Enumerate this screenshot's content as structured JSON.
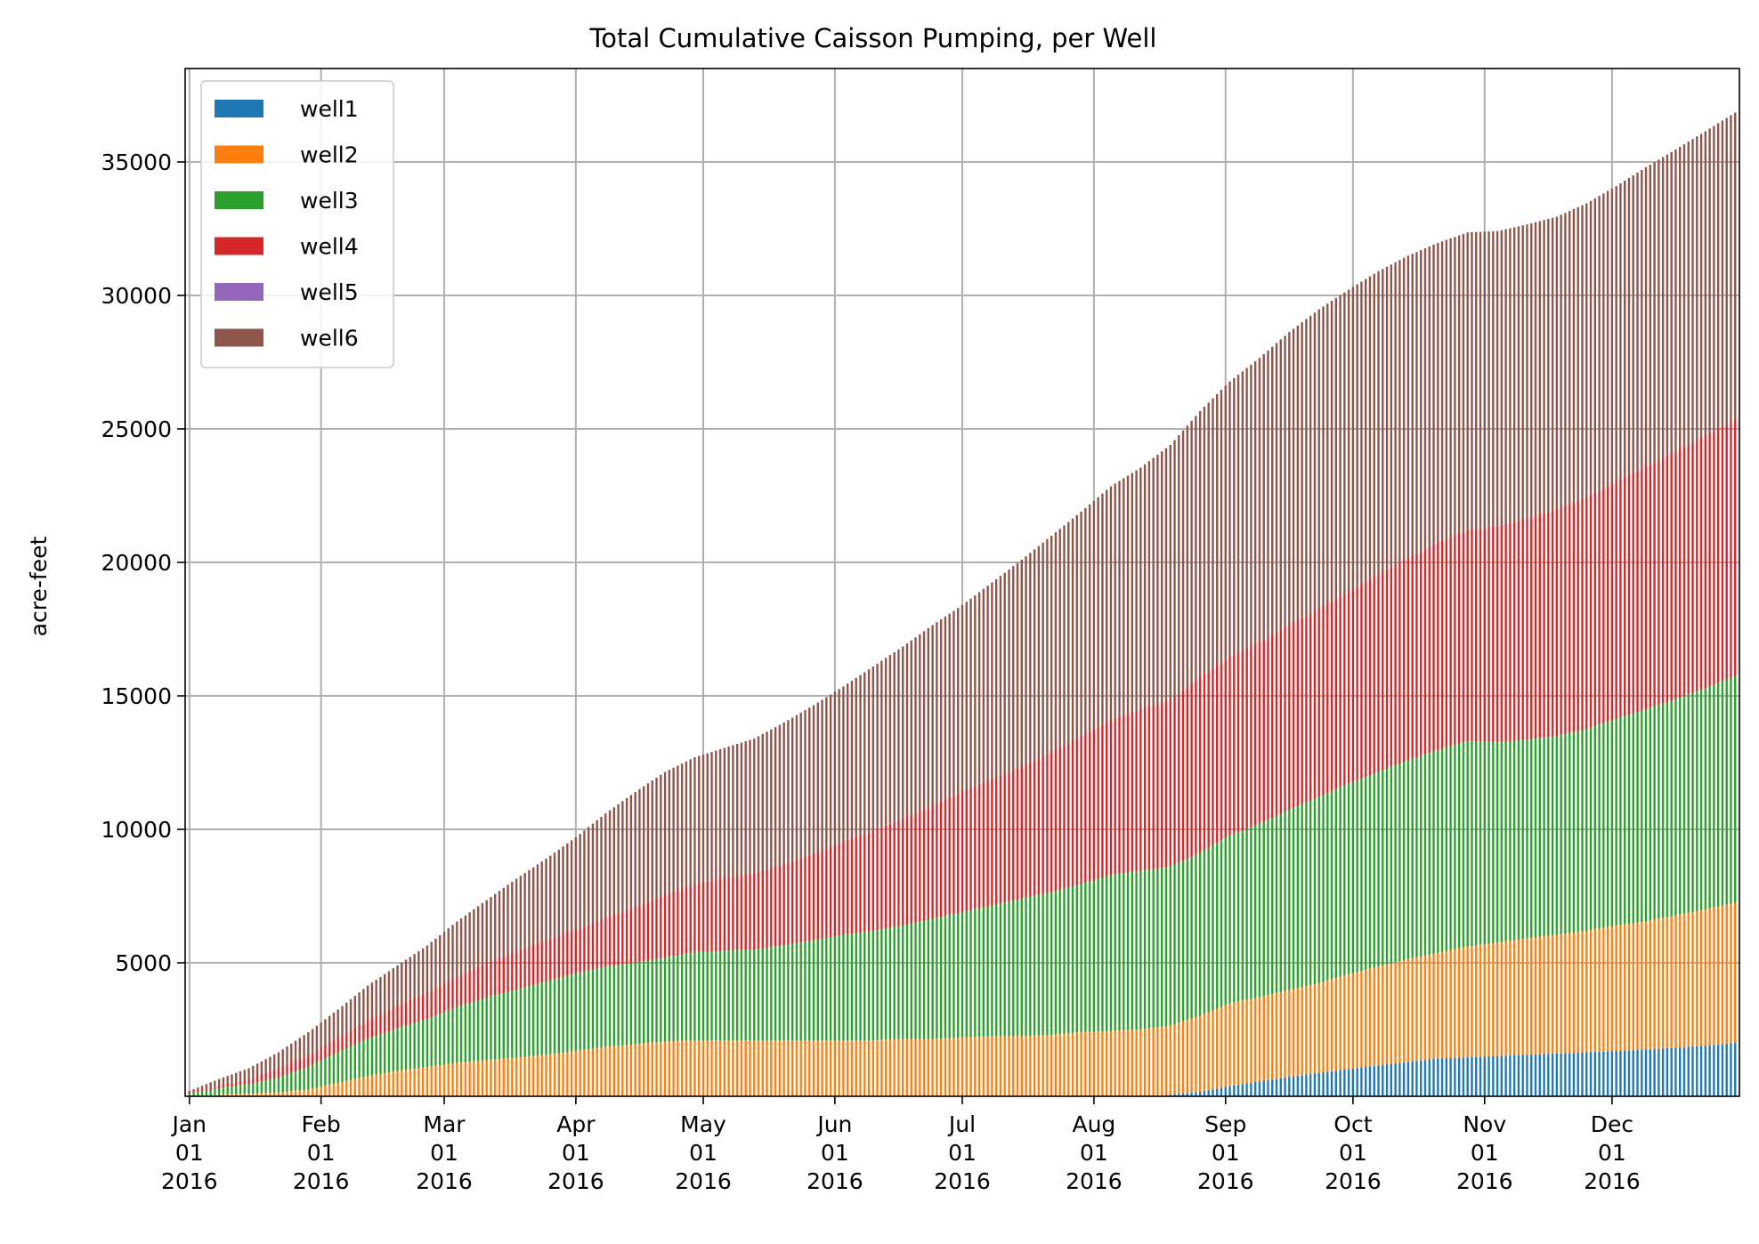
{
  "chart_data": {
    "type": "bar",
    "stacked": true,
    "title": "Total Cumulative Caisson Pumping, per Well",
    "ylabel": "acre-feet",
    "xlabel": "",
    "grid": true,
    "legend_position": "top-left",
    "x_range": [
      "2015-12-31",
      "2016-12-31"
    ],
    "ylim": [
      0,
      38500
    ],
    "yticks": [
      5000,
      10000,
      15000,
      20000,
      25000,
      30000,
      35000
    ],
    "xticks": [
      {
        "date": "2016-01-01",
        "label": [
          "Jan",
          "01",
          "2016"
        ]
      },
      {
        "date": "2016-02-01",
        "label": [
          "Feb",
          "01",
          "2016"
        ]
      },
      {
        "date": "2016-03-01",
        "label": [
          "Mar",
          "01",
          "2016"
        ]
      },
      {
        "date": "2016-04-01",
        "label": [
          "Apr",
          "01",
          "2016"
        ]
      },
      {
        "date": "2016-05-01",
        "label": [
          "May",
          "01",
          "2016"
        ]
      },
      {
        "date": "2016-06-01",
        "label": [
          "Jun",
          "01",
          "2016"
        ]
      },
      {
        "date": "2016-07-01",
        "label": [
          "Jul",
          "01",
          "2016"
        ]
      },
      {
        "date": "2016-08-01",
        "label": [
          "Aug",
          "01",
          "2016"
        ]
      },
      {
        "date": "2016-09-01",
        "label": [
          "Sep",
          "01",
          "2016"
        ]
      },
      {
        "date": "2016-10-01",
        "label": [
          "Oct",
          "01",
          "2016"
        ]
      },
      {
        "date": "2016-11-01",
        "label": [
          "Nov",
          "01",
          "2016"
        ]
      },
      {
        "date": "2016-12-01",
        "label": [
          "Dec",
          "01",
          "2016"
        ]
      }
    ],
    "x": [
      "2016-01-01",
      "2016-01-08",
      "2016-01-15",
      "2016-01-22",
      "2016-01-29",
      "2016-02-05",
      "2016-02-12",
      "2016-02-19",
      "2016-02-26",
      "2016-03-04",
      "2016-03-11",
      "2016-03-18",
      "2016-03-25",
      "2016-04-01",
      "2016-04-08",
      "2016-04-15",
      "2016-04-22",
      "2016-04-29",
      "2016-05-06",
      "2016-05-13",
      "2016-05-20",
      "2016-05-27",
      "2016-06-03",
      "2016-06-10",
      "2016-06-17",
      "2016-06-24",
      "2016-07-01",
      "2016-07-08",
      "2016-07-15",
      "2016-07-22",
      "2016-07-29",
      "2016-08-05",
      "2016-08-12",
      "2016-08-19",
      "2016-08-26",
      "2016-09-02",
      "2016-09-09",
      "2016-09-16",
      "2016-09-23",
      "2016-09-30",
      "2016-10-07",
      "2016-10-14",
      "2016-10-21",
      "2016-10-28",
      "2016-11-04",
      "2016-11-11",
      "2016-11-18",
      "2016-11-25",
      "2016-12-02",
      "2016-12-09",
      "2016-12-16",
      "2016-12-23",
      "2016-12-30"
    ],
    "series": [
      {
        "name": "well1",
        "color": "#1f77b4",
        "values": [
          0,
          0,
          0,
          0,
          0,
          0,
          0,
          0,
          0,
          0,
          0,
          0,
          0,
          0,
          0,
          0,
          0,
          0,
          0,
          0,
          0,
          0,
          0,
          0,
          0,
          0,
          0,
          0,
          0,
          0,
          0,
          0,
          0,
          50,
          170,
          380,
          560,
          730,
          880,
          1020,
          1160,
          1290,
          1420,
          1460,
          1510,
          1560,
          1600,
          1650,
          1700,
          1750,
          1820,
          1900,
          2000
        ]
      },
      {
        "name": "well2",
        "color": "#ff7f0e",
        "values": [
          0,
          50,
          100,
          150,
          250,
          500,
          750,
          950,
          1100,
          1250,
          1350,
          1450,
          1550,
          1700,
          1850,
          1950,
          2050,
          2100,
          2100,
          2100,
          2100,
          2100,
          2100,
          2100,
          2150,
          2150,
          2200,
          2250,
          2250,
          2300,
          2400,
          2450,
          2500,
          2600,
          2850,
          3100,
          3150,
          3250,
          3350,
          3550,
          3700,
          3850,
          3950,
          4150,
          4250,
          4350,
          4450,
          4550,
          4700,
          4800,
          4950,
          5100,
          5250
        ]
      },
      {
        "name": "well3",
        "color": "#2ca02c",
        "values": [
          100,
          250,
          350,
          550,
          850,
          1150,
          1400,
          1600,
          1800,
          2100,
          2350,
          2550,
          2750,
          2900,
          3000,
          3050,
          3150,
          3300,
          3350,
          3400,
          3550,
          3750,
          3950,
          4100,
          4250,
          4500,
          4700,
          4900,
          5150,
          5350,
          5550,
          5850,
          5950,
          5950,
          6100,
          6300,
          6500,
          6750,
          7000,
          7150,
          7300,
          7450,
          7600,
          7700,
          7500,
          7450,
          7450,
          7550,
          7750,
          7950,
          8100,
          8300,
          8500
        ]
      },
      {
        "name": "well4",
        "color": "#d62728",
        "values": [
          50,
          100,
          200,
          350,
          450,
          550,
          700,
          850,
          1000,
          1150,
          1300,
          1450,
          1550,
          1650,
          1850,
          2100,
          2350,
          2550,
          2750,
          2850,
          3050,
          3250,
          3500,
          3750,
          4000,
          4250,
          4550,
          4750,
          4950,
          5250,
          5550,
          5800,
          6050,
          6250,
          6600,
          6700,
          6800,
          6950,
          7050,
          7200,
          7400,
          7600,
          7800,
          7900,
          8100,
          8300,
          8500,
          8700,
          8900,
          9100,
          9300,
          9450,
          9600
        ]
      },
      {
        "name": "well5",
        "color": "#9467bd",
        "values": [
          0,
          0,
          0,
          0,
          0,
          0,
          0,
          0,
          0,
          0,
          0,
          0,
          0,
          0,
          0,
          0,
          0,
          0,
          0,
          0,
          0,
          0,
          0,
          0,
          0,
          0,
          0,
          0,
          0,
          0,
          0,
          0,
          0,
          0,
          0,
          0,
          0,
          0,
          0,
          0,
          0,
          0,
          0,
          0,
          0,
          0,
          0,
          0,
          0,
          0,
          0,
          0,
          0
        ]
      },
      {
        "name": "well6",
        "color": "#8c564b",
        "values": [
          50,
          250,
          400,
          600,
          850,
          1050,
          1300,
          1500,
          1750,
          2050,
          2350,
          2700,
          3050,
          3450,
          3900,
          4300,
          4600,
          4750,
          4850,
          5050,
          5300,
          5550,
          5800,
          6150,
          6450,
          6750,
          6950,
          7350,
          7750,
          8100,
          8400,
          8750,
          9050,
          9550,
          9950,
          10300,
          10650,
          10950,
          11200,
          11300,
          11350,
          11300,
          11200,
          11150,
          11050,
          11000,
          10950,
          11000,
          11050,
          11200,
          11300,
          11400,
          11500
        ]
      }
    ]
  }
}
